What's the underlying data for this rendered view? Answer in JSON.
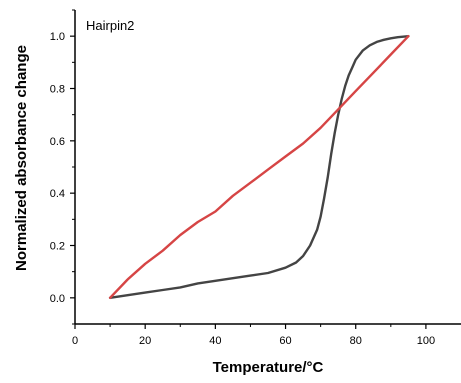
{
  "chart_data": {
    "type": "line",
    "title": "",
    "annotation": "Hairpin2",
    "xlabel": "Temperature/°C",
    "ylabel": "Normalized absorbance change",
    "xlim": [
      0,
      110
    ],
    "ylim": [
      -0.1,
      1.1
    ],
    "x_ticks": [
      0,
      20,
      40,
      60,
      80,
      100
    ],
    "x_tick_labels": [
      "0",
      "20",
      "40",
      "60",
      "80",
      "100"
    ],
    "y_ticks": [
      0.0,
      0.2,
      0.4,
      0.6,
      0.8,
      1.0
    ],
    "y_tick_labels": [
      "0.0",
      "0.2",
      "0.4",
      "0.6",
      "0.8",
      "1.0"
    ],
    "grid": false,
    "legend": "none",
    "series": [
      {
        "color": "#444444",
        "x": [
          10,
          15,
          20,
          25,
          30,
          35,
          40,
          45,
          50,
          55,
          60,
          63,
          65,
          67,
          69,
          70,
          71,
          72,
          73,
          74,
          75,
          76,
          77,
          78,
          79,
          80,
          82,
          84,
          86,
          88,
          90,
          92,
          95
        ],
        "y": [
          0.0,
          0.01,
          0.02,
          0.03,
          0.04,
          0.055,
          0.065,
          0.075,
          0.085,
          0.095,
          0.115,
          0.135,
          0.16,
          0.2,
          0.26,
          0.31,
          0.38,
          0.46,
          0.55,
          0.63,
          0.7,
          0.76,
          0.81,
          0.85,
          0.88,
          0.91,
          0.945,
          0.965,
          0.978,
          0.986,
          0.992,
          0.996,
          1.0
        ]
      },
      {
        "color": "#d64545",
        "x": [
          10,
          15,
          20,
          25,
          30,
          35,
          40,
          45,
          50,
          55,
          60,
          65,
          70,
          75,
          80,
          85,
          90,
          95
        ],
        "y": [
          0.0,
          0.07,
          0.13,
          0.18,
          0.24,
          0.29,
          0.33,
          0.39,
          0.44,
          0.49,
          0.54,
          0.59,
          0.65,
          0.72,
          0.79,
          0.86,
          0.93,
          1.0
        ]
      }
    ]
  }
}
